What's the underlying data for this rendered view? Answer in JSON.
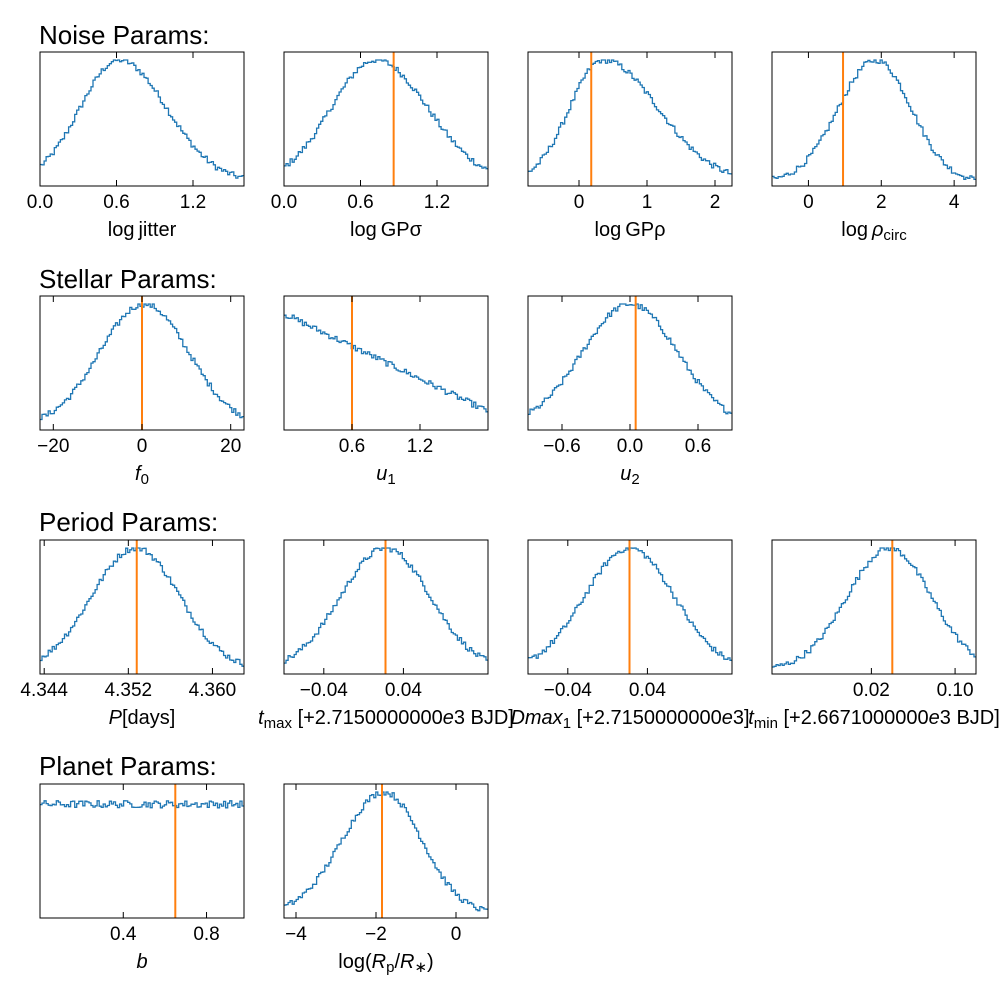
{
  "figure": {
    "background": "#ffffff",
    "hist_color": "#1f77b4",
    "truth_color": "#ff7f0e"
  },
  "groups": [
    {
      "title": "Noise Params:"
    },
    {
      "title": "Stellar Params:"
    },
    {
      "title": "Period Params:"
    },
    {
      "title": "Planet Params:"
    }
  ],
  "chart_data": [
    {
      "type": "histogram",
      "group": 0,
      "title": "Noise Params:",
      "label_parts": [
        {
          "t": "log jitter"
        }
      ],
      "xlim": [
        0.0,
        1.6
      ],
      "ticks": [
        0.0,
        0.6,
        1.2
      ],
      "tick_labels": [
        "0.0",
        "0.6",
        "1.2"
      ],
      "mode": 0.62,
      "sigma": 0.34,
      "skew": 0.2,
      "truth": null
    },
    {
      "type": "histogram",
      "group": 0,
      "label_parts": [
        {
          "t": "log GPσ"
        }
      ],
      "xlim": [
        0.0,
        1.6
      ],
      "ticks": [
        0.0,
        0.6,
        1.2
      ],
      "tick_labels": [
        "0.0",
        "0.6",
        "1.2"
      ],
      "mode": 0.72,
      "sigma": 0.38,
      "skew": 0.15,
      "truth": 0.86
    },
    {
      "type": "histogram",
      "group": 0,
      "label_parts": [
        {
          "t": "log GPρ"
        }
      ],
      "xlim": [
        -0.75,
        2.25
      ],
      "ticks": [
        0,
        1,
        2
      ],
      "tick_labels": [
        "0",
        "1",
        "2"
      ],
      "mode": 0.35,
      "sigma": 0.65,
      "skew": 0.5,
      "truth": 0.18
    },
    {
      "type": "histogram",
      "group": 0,
      "label_parts": [
        {
          "t": "log "
        },
        {
          "t": "ρ",
          "style": "italic"
        },
        {
          "t": "circ",
          "sub": true
        }
      ],
      "xlim": [
        -1.0,
        4.6
      ],
      "ticks": [
        0,
        2,
        4
      ],
      "tick_labels": [
        "0",
        "2",
        "4"
      ],
      "mode": 1.85,
      "sigma": 1.0,
      "skew": -0.05,
      "truth": 0.95
    },
    {
      "type": "histogram",
      "group": 1,
      "title": "Stellar Params:",
      "label_parts": [
        {
          "t": "f",
          "style": "italic"
        },
        {
          "t": "0",
          "sub": true
        }
      ],
      "xlim": [
        -23,
        23
      ],
      "ticks": [
        -20,
        0,
        20
      ],
      "tick_labels": [
        "−20",
        "0",
        "20"
      ],
      "mode": 0.5,
      "sigma": 10.0,
      "skew": 0,
      "truth": 0.0
    },
    {
      "type": "histogram",
      "group": 1,
      "label_parts": [
        {
          "t": "u",
          "style": "italic"
        },
        {
          "t": "1",
          "sub": true
        }
      ],
      "xlim": [
        0.0,
        1.8
      ],
      "ticks": [
        0.6,
        1.2
      ],
      "tick_labels": [
        "0.6",
        "1.2"
      ],
      "shape": "linear",
      "start": 0.92,
      "end": 0.12,
      "truth": 0.6
    },
    {
      "type": "histogram",
      "group": 1,
      "label_parts": [
        {
          "t": "u",
          "style": "italic"
        },
        {
          "t": "2",
          "sub": true
        }
      ],
      "xlim": [
        -0.9,
        0.9
      ],
      "ticks": [
        -0.6,
        0.0,
        0.6
      ],
      "tick_labels": [
        "−0.6",
        "0.0",
        "0.6"
      ],
      "mode": 0.0,
      "sigma": 0.42,
      "skew": 0,
      "truth": 0.05
    },
    {
      "type": "histogram",
      "group": 2,
      "title": "Period Params:",
      "label_parts": [
        {
          "t": "P",
          "style": "italic"
        },
        {
          "t": "[days]"
        }
      ],
      "xlim": [
        4.3436,
        4.363
      ],
      "ticks": [
        4.344,
        4.352,
        4.36
      ],
      "tick_labels": [
        "4.344",
        "4.352",
        "4.360"
      ],
      "mode": 4.3527,
      "sigma": 0.0042,
      "skew": 0,
      "truth": 4.3528
    },
    {
      "type": "histogram",
      "group": 2,
      "label_parts": [
        {
          "t": "t",
          "style": "italic"
        },
        {
          "t": "max",
          "sub": true
        },
        {
          "t": "  [+2.7150000000"
        },
        {
          "t": "e",
          "style": "italic"
        },
        {
          "t": "3  BJD]"
        }
      ],
      "xlim": [
        -0.08,
        0.125
      ],
      "ticks": [
        -0.04,
        0.04
      ],
      "tick_labels": [
        "−0.04",
        "0.04"
      ],
      "mode": 0.022,
      "sigma": 0.045,
      "skew": 0,
      "truth": 0.022
    },
    {
      "type": "histogram",
      "group": 2,
      "label_parts": [
        {
          "t": "Dmax",
          "style": "italic"
        },
        {
          "t": "1",
          "sub": true
        },
        {
          "t": " [+2.7150000000"
        },
        {
          "t": "e",
          "style": "italic"
        },
        {
          "t": "3]"
        }
      ],
      "xlim": [
        -0.08,
        0.125
      ],
      "ticks": [
        -0.04,
        0.04
      ],
      "tick_labels": [
        "−0.04",
        "0.04"
      ],
      "mode": 0.022,
      "sigma": 0.045,
      "skew": 0,
      "truth": 0.022
    },
    {
      "type": "histogram",
      "group": 2,
      "label_parts": [
        {
          "t": "t",
          "style": "italic"
        },
        {
          "t": "min",
          "sub": true
        },
        {
          "t": "  [+2.6671000000"
        },
        {
          "t": "e",
          "style": "italic"
        },
        {
          "t": "3  BJD]"
        }
      ],
      "xlim": [
        -0.075,
        0.12
      ],
      "ticks": [
        0.02,
        0.1
      ],
      "tick_labels": [
        "0.02",
        "0.10"
      ],
      "mode": 0.037,
      "sigma": 0.04,
      "skew": 0,
      "truth": 0.04
    },
    {
      "type": "histogram",
      "group": 3,
      "title": "Planet Params:",
      "label_parts": [
        {
          "t": "b",
          "style": "italic"
        }
      ],
      "xlim": [
        0.0,
        0.98
      ],
      "ticks": [
        0.4,
        0.8
      ],
      "tick_labels": [
        "0.4",
        "0.8"
      ],
      "shape": "flat",
      "level": 0.9,
      "truth": 0.65
    },
    {
      "type": "histogram",
      "group": 3,
      "label_parts": [
        {
          "t": "log("
        },
        {
          "t": "R",
          "style": "italic"
        },
        {
          "t": "p",
          "sub": true
        },
        {
          "t": "/"
        },
        {
          "t": "R",
          "style": "italic"
        },
        {
          "t": "∗",
          "sub": true
        },
        {
          "t": ")"
        }
      ],
      "xlim": [
        -4.3,
        0.8
      ],
      "ticks": [
        -4,
        -2,
        0
      ],
      "tick_labels": [
        "−4",
        "−2",
        "0"
      ],
      "mode": -1.8,
      "sigma": 1.0,
      "skew": -0.1,
      "truth": -1.85
    }
  ]
}
